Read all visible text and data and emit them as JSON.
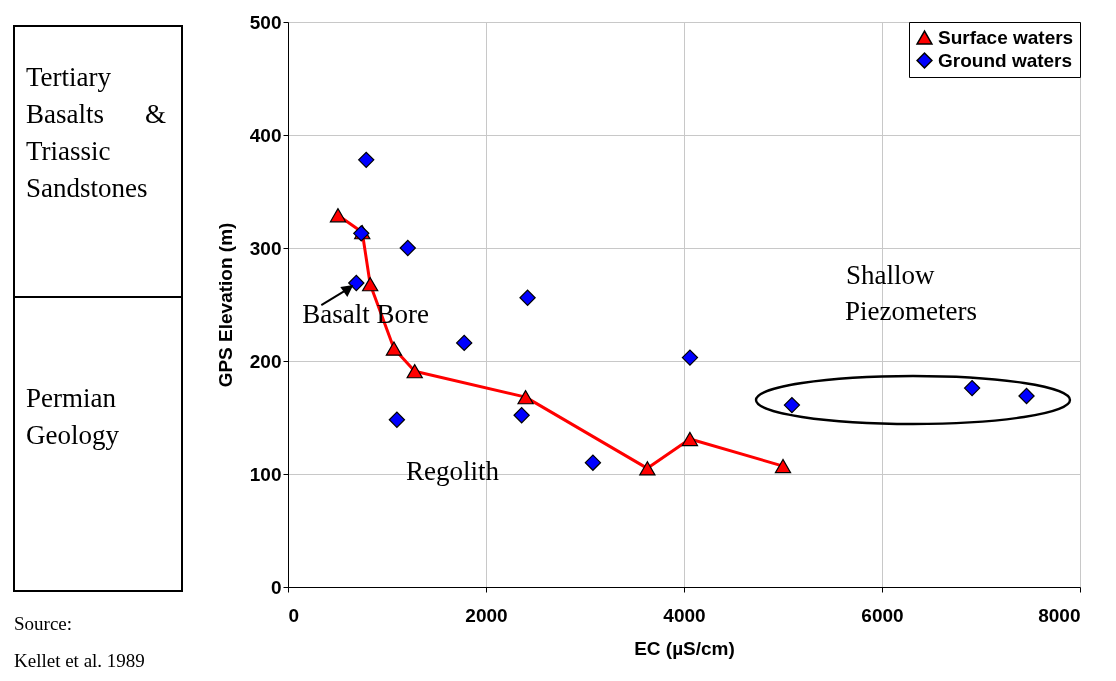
{
  "chart_data": {
    "type": "scatter",
    "xlabel": "EC (µS/cm)",
    "ylabel": "GPS Elevation (m)",
    "xlim": [
      0,
      8000
    ],
    "xticks": [
      0,
      2000,
      4000,
      6000,
      8000
    ],
    "ylim": [
      0,
      500
    ],
    "yticks": [
      0,
      100,
      200,
      300,
      400,
      500
    ],
    "grid": true,
    "legend": "top right",
    "series": [
      {
        "name": "Surface waters",
        "type": "line",
        "marker": "triangle",
        "color": "#ff0000",
        "x": [
          505,
          750,
          830,
          1070,
          1280,
          2400,
          3630,
          4060,
          5000
        ],
        "values": [
          329,
          314,
          268,
          211,
          191,
          168,
          105,
          131,
          107
        ]
      },
      {
        "name": "Ground waters",
        "type": "scatter",
        "marker": "diamond",
        "color": "#0000ff",
        "x": [
          790,
          740,
          1210,
          690,
          1100,
          1780,
          2420,
          2360,
          3080,
          4060,
          5090,
          6910,
          7460
        ],
        "values": [
          378,
          313,
          300,
          269,
          148,
          216,
          256,
          152,
          110,
          203,
          161,
          176,
          169
        ]
      }
    ],
    "annotations": [
      {
        "text": "Basalt Bore",
        "x": 690,
        "y": 269
      },
      "Regolith",
      "Shallow Piezometers",
      "Tertiary Basalts & Triassic Sandstones",
      "Permian Geology",
      "Source:",
      "Kellet et al. 1989"
    ]
  }
}
